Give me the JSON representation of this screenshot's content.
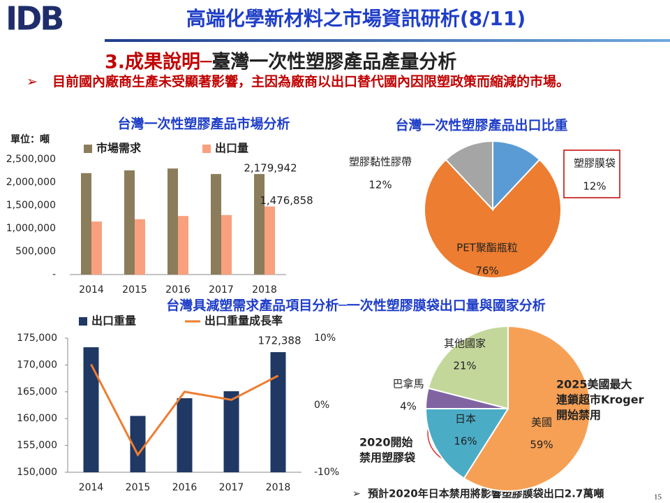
{
  "logo": "IDB",
  "header_title": "高端化學新材料之市場資訊研析(8/11)",
  "section_number": "3.成果說明─",
  "section_title": "臺灣一次性塑膠產品產量分析",
  "bullet": "目前國內廠商生產未受顯著影響，主因為廠商以出口替代國內因限塑政策而縮減的市場。",
  "bottom_heading": "台灣具減塑需求產品項目分析─一次性塑膠膜袋出口量與國家分析",
  "footnote": "預計2020年日本禁用將影響塑膠膜袋出口2.7萬噸",
  "page_number": "15",
  "chart_data": [
    {
      "type": "bar",
      "title": "台灣一次性塑膠產品市場分析",
      "unit": "單位：噸",
      "categories": [
        "2014",
        "2015",
        "2016",
        "2017",
        "2018"
      ],
      "series": [
        {
          "name": "市場需求",
          "color": "#8b7d5b",
          "values": [
            2200000,
            2260000,
            2300000,
            2180000,
            2179942
          ],
          "value_labels": [
            null,
            null,
            null,
            null,
            "2,179,942"
          ]
        },
        {
          "name": "出口量",
          "color": "#f9a07e",
          "values": [
            1150000,
            1200000,
            1270000,
            1290000,
            1476858
          ],
          "value_labels": [
            null,
            null,
            null,
            null,
            "1,476,858"
          ]
        }
      ],
      "ylim": [
        0,
        2500000
      ],
      "yticks": [
        {
          "value": 0,
          "label": "-"
        },
        {
          "value": 500000,
          "label": "500,000"
        },
        {
          "value": 1000000,
          "label": "1,000,000"
        },
        {
          "value": 1500000,
          "label": "1,500,000"
        },
        {
          "value": 2000000,
          "label": "2,000,000"
        },
        {
          "value": 2500000,
          "label": "2,500,000"
        }
      ]
    },
    {
      "type": "pie",
      "title": "台灣一次性塑膠產品出口比重",
      "categories": [
        "塑膠膜袋",
        "PET聚酯瓶粒",
        "塑膠黏性膠帶"
      ],
      "values": [
        12,
        76,
        12
      ],
      "value_labels": [
        "12%",
        "76%",
        "12%"
      ],
      "colors": [
        "#5b9bd5",
        "#ed7d31",
        "#a5a5a5"
      ]
    },
    {
      "type": "bar",
      "categories": [
        "2014",
        "2015",
        "2016",
        "2017",
        "2018"
      ],
      "series": [
        {
          "name": "出口重量",
          "color": "#1f3864",
          "values": [
            173300,
            160500,
            163800,
            165100,
            172388
          ],
          "value_labels": [
            null,
            null,
            null,
            null,
            "172,388"
          ]
        },
        {
          "name": "出口重量成長率",
          "type": "line",
          "axis": "y2",
          "color": "#ed7d31",
          "values": [
            6.1,
            -7.4,
            2.0,
            0.8,
            4.4
          ]
        }
      ],
      "ylim": [
        150000,
        175000
      ],
      "yticks": [
        {
          "value": 150000,
          "label": "150,000"
        },
        {
          "value": 155000,
          "label": "155,000"
        },
        {
          "value": 160000,
          "label": "160,000"
        },
        {
          "value": 165000,
          "label": "165,000"
        },
        {
          "value": 170000,
          "label": "170,000"
        },
        {
          "value": 175000,
          "label": "175,000"
        }
      ],
      "y2lim": [
        -10,
        10
      ],
      "y2ticks": [
        {
          "value": -10,
          "label": "-10%"
        },
        {
          "value": 0,
          "label": "0%"
        },
        {
          "value": 10,
          "label": "10%"
        }
      ]
    },
    {
      "type": "pie",
      "categories": [
        "美國",
        "日本",
        "巴拿馬",
        "其他國家"
      ],
      "values": [
        59,
        16,
        4,
        21
      ],
      "value_labels": [
        "59%",
        "16%",
        "4%",
        "21%"
      ],
      "colors": [
        "#f6a055",
        "#4bacc6",
        "#8064a2",
        "#c4d79b"
      ],
      "annotations": [
        [
          "2025美國最大",
          "連鎖超市Kroger",
          "開始禁用"
        ],
        [
          "2020開始",
          "禁用塑膠袋"
        ]
      ]
    }
  ]
}
